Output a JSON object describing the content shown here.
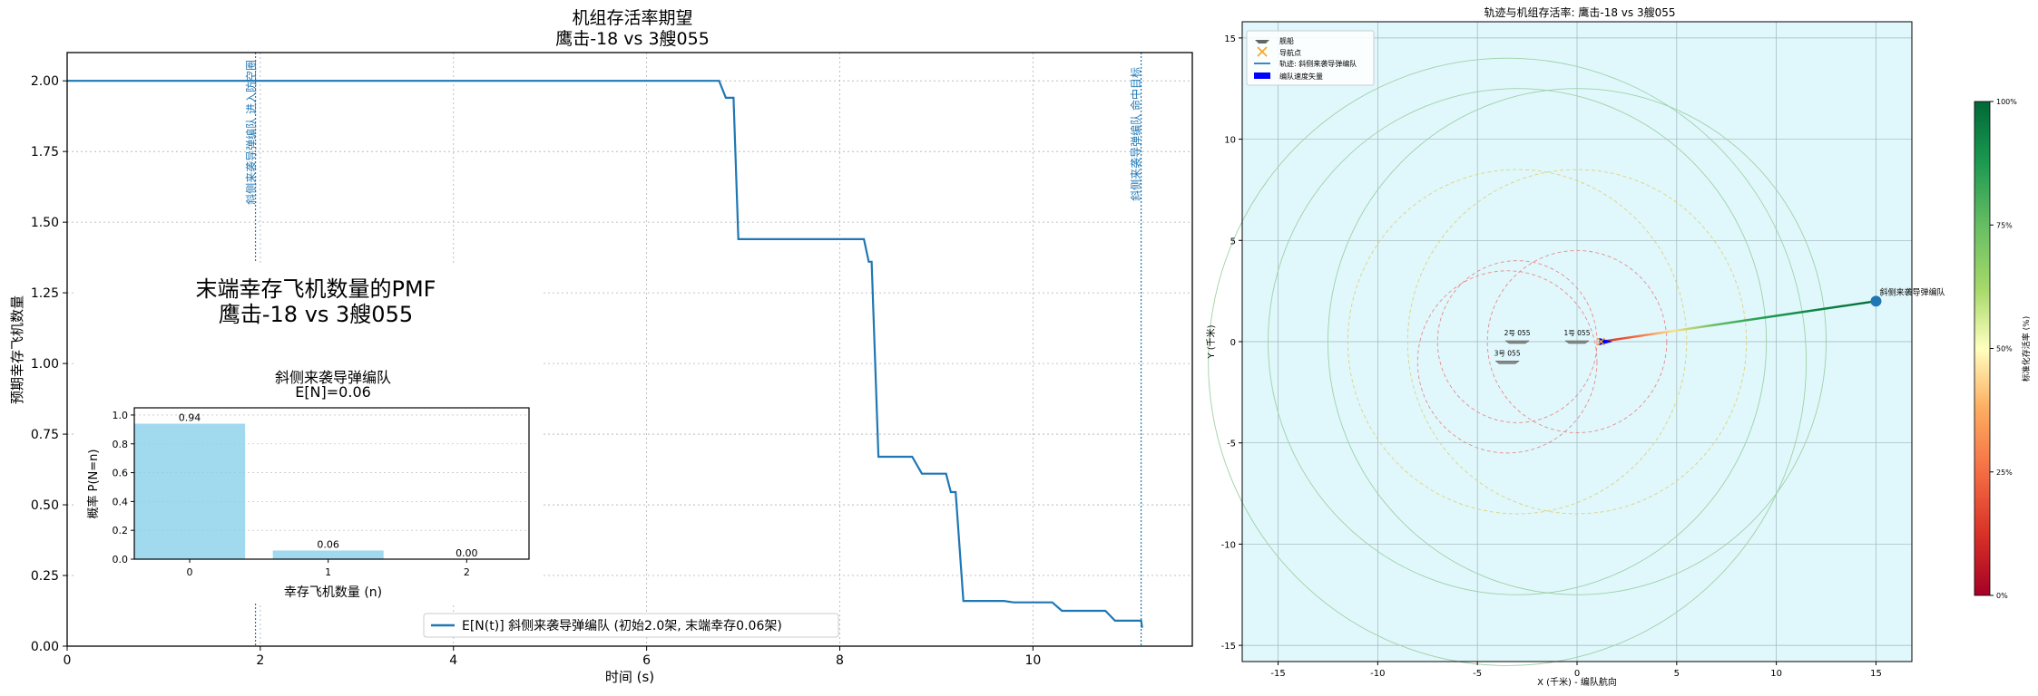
{
  "left_panel": {
    "title_line1": "机组存活率期望",
    "title_line2": "鹰击-18 vs 3艘055",
    "xlabel": "时间 (s)",
    "ylabel": "预期幸存飞机数量",
    "xticks": [
      "0",
      "2",
      "4",
      "6",
      "8",
      "10"
    ],
    "yticks": [
      "0.00",
      "0.25",
      "0.50",
      "0.75",
      "1.00",
      "1.25",
      "1.50",
      "1.75",
      "2.00"
    ],
    "vline1_label": "斜侧来袭导弹编队 进入防空圈",
    "vline2_label": "斜侧来袭导弹编队 命中目标",
    "legend_label": "E[N(t)] 斜侧来袭导弹编队 (初始2.0架, 末端幸存0.06架)"
  },
  "inset": {
    "heading_line1": "末端幸存飞机数量的PMF",
    "heading_line2": "鹰击-18 vs 3艘055",
    "title_line1": "斜侧来袭导弹编队",
    "title_line2": "E[N]=0.06",
    "xlabel": "幸存飞机数量 (n)",
    "ylabel": "概率 P(N=n)",
    "yticks": [
      "0.0",
      "0.2",
      "0.4",
      "0.6",
      "0.8",
      "1.0"
    ]
  },
  "right_panel": {
    "title": "轨迹与机组存活率: 鹰击-18 vs 3艘055",
    "xlabel": "X (千米) - 编队航向",
    "ylabel": "Y (千米)",
    "ticks": [
      "-15",
      "-10",
      "-5",
      "0",
      "5",
      "10",
      "15"
    ],
    "legend": [
      "舰船",
      "导航点",
      "轨迹: 斜侧来袭导弹编队",
      "编队速度矢量"
    ],
    "ship_labels": [
      "1号 055",
      "2号 055",
      "3号 055"
    ],
    "formation_label": "斜侧来袭导弹编队",
    "colorbar_label": "标准化存活率 (%)",
    "colorbar_ticks": [
      "0%",
      "25%",
      "50%",
      "75%",
      "100%"
    ]
  },
  "chart_data": [
    {
      "type": "line",
      "title": "机组存活率期望 鹰击-18 vs 3艘055",
      "xlabel": "时间 (s)",
      "ylabel": "预期幸存飞机数量",
      "xlim": [
        0,
        11.65
      ],
      "ylim": [
        0,
        2.1
      ],
      "grid": true,
      "legend_position": "bottom-center",
      "series": [
        {
          "name": "E[N(t)] 斜侧来袭导弹编队 (初始2.0架, 末端幸存0.06架)",
          "color": "#1f77b4",
          "points": [
            [
              0,
              2.0
            ],
            [
              6.75,
              2.0
            ],
            [
              6.82,
              1.94
            ],
            [
              6.9,
              1.94
            ],
            [
              6.95,
              1.44
            ],
            [
              8.25,
              1.44
            ],
            [
              8.3,
              1.36
            ],
            [
              8.33,
              1.36
            ],
            [
              8.4,
              0.67
            ],
            [
              8.75,
              0.67
            ],
            [
              8.85,
              0.61
            ],
            [
              9.1,
              0.61
            ],
            [
              9.15,
              0.545
            ],
            [
              9.2,
              0.545
            ],
            [
              9.28,
              0.16
            ],
            [
              9.7,
              0.16
            ],
            [
              9.8,
              0.155
            ],
            [
              10.2,
              0.155
            ],
            [
              10.3,
              0.125
            ],
            [
              10.75,
              0.125
            ],
            [
              10.85,
              0.09
            ],
            [
              11.12,
              0.09
            ],
            [
              11.13,
              0.065
            ]
          ]
        }
      ],
      "vlines": [
        1.95,
        11.12
      ]
    },
    {
      "type": "bar",
      "title": "斜侧来袭导弹编队 E[N]=0.06",
      "xlabel": "幸存飞机数量 (n)",
      "ylabel": "概率 P(N=n)",
      "categories": [
        "0",
        "1",
        "2"
      ],
      "values": [
        0.94,
        0.06,
        0.0
      ],
      "value_labels": [
        "0.94",
        "0.06",
        "0.00"
      ],
      "ylim": [
        0,
        1.05
      ],
      "grid": true,
      "color": "#87ceeb"
    },
    {
      "type": "scatter",
      "title": "轨迹与机组存活率: 鹰击-18 vs 3艘055",
      "xlabel": "X (千米) - 编队航向",
      "ylabel": "Y (千米)",
      "xlim": [
        -16.8,
        16.8
      ],
      "ylim": [
        -15.8,
        15.8
      ],
      "grid": true,
      "legend_position": "top-left",
      "ships": [
        {
          "name": "1号 055",
          "x": 0,
          "y": 0
        },
        {
          "name": "2号 055",
          "x": -3,
          "y": 0
        },
        {
          "name": "3号 055",
          "x": -3.5,
          "y": -1
        }
      ],
      "trajectory": {
        "name": "斜侧来袭导弹编队",
        "start": [
          15,
          2
        ],
        "end": [
          1.2,
          0
        ],
        "survival_start": 1.0,
        "survival_end": 0.0
      },
      "rings": [
        {
          "center": [
            0,
            0
          ],
          "r": 4.5,
          "style": "dashed",
          "color": "#e88b8b"
        },
        {
          "center": [
            -3,
            0
          ],
          "r": 4.0,
          "style": "dashed",
          "color": "#e88b8b"
        },
        {
          "center": [
            -3.5,
            -1
          ],
          "r": 4.5,
          "style": "dashed",
          "color": "#e88b8b"
        },
        {
          "center": [
            0,
            0
          ],
          "r": 8.5,
          "style": "dashed",
          "color": "#ddd27a"
        },
        {
          "center": [
            -3,
            0
          ],
          "r": 8.5,
          "style": "dashed",
          "color": "#ddd27a"
        },
        {
          "center": [
            0,
            0
          ],
          "r": 12.5,
          "style": "solid",
          "color": "#9fd0a6"
        },
        {
          "center": [
            -3,
            0
          ],
          "r": 12.5,
          "style": "solid",
          "color": "#9fd0a6"
        },
        {
          "center": [
            -3.5,
            -1
          ],
          "r": 15,
          "style": "solid",
          "color": "#9fd0a6"
        }
      ],
      "colorbar": {
        "label": "标准化存活率 (%)",
        "range": [
          0,
          100
        ],
        "cmap": "RdYlGn"
      }
    }
  ]
}
